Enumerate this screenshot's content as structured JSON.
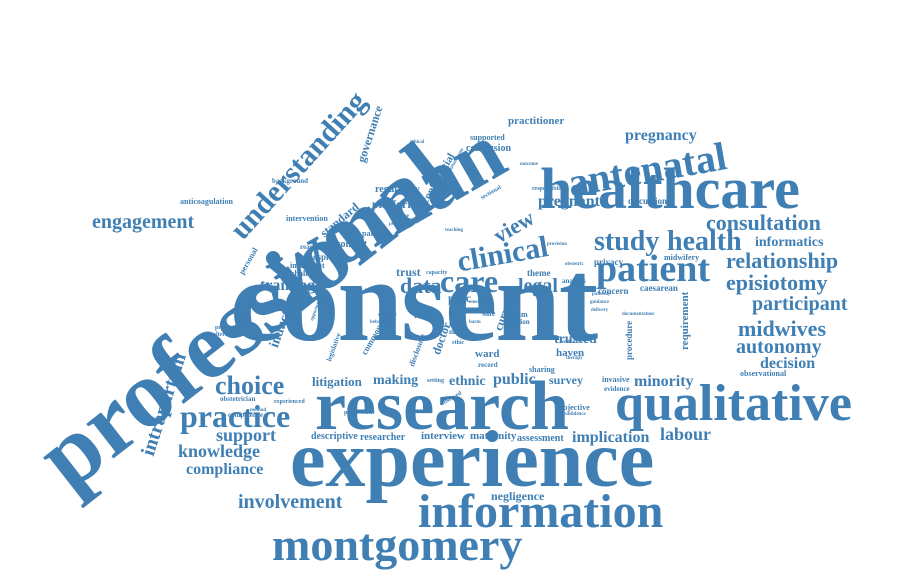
{
  "cloud": {
    "words": {
      "consent": "consent",
      "professional": "professional",
      "woman": "woman",
      "research": "research",
      "experience": "experience",
      "healthcare": "healthcare",
      "qualitative": "qualitative",
      "information": "information",
      "montgomery": "montgomery",
      "antenatal": "antenatal",
      "patient": "patient",
      "clinical": "clinical",
      "care": "care",
      "practice": "practice",
      "understanding": "understanding",
      "choice": "choice",
      "study": "study",
      "health": "health",
      "relationship": "relationship",
      "consultation": "consultation",
      "episiotomy": "episiotomy",
      "midwives": "midwives",
      "autonomy": "autonomy",
      "participant": "participant",
      "engagement": "engagement",
      "intrapartum": "intrapartum",
      "involvement": "involvement",
      "knowledge": "knowledge",
      "compliance": "compliance",
      "support": "support",
      "labour": "labour",
      "pregnancy": "pregnancy",
      "pregnant": "pregnant",
      "informatics": "informatics",
      "view": "view",
      "data": "data",
      "legal": "legal",
      "training": "training",
      "decision": "decision",
      "minority": "minority",
      "public": "public",
      "making": "making",
      "ethnic": "ethnic",
      "litigation": "litigation",
      "implication": "implication",
      "negligence": "negligence",
      "governance": "governance",
      "induction": "induction",
      "platform": "platform",
      "trusted": "trusted",
      "requirement": "requirement",
      "practitioner": "practitioner",
      "conclusion": "conclusion",
      "survey": "survey",
      "maternity": "maternity",
      "assessment": "assessment",
      "interview": "interview",
      "researcher": "researcher",
      "descriptive": "descriptive",
      "standard": "standard",
      "regulatory": "regulatory",
      "confidential": "confidential",
      "context": "context",
      "trust": "trust",
      "proc": "proc",
      "current": "current",
      "doctor": "doctor",
      "caesarean": "caesarean",
      "concern": "concern",
      "privacy": "privacy",
      "discussion": "discussion",
      "midwifery": "midwifery",
      "theme": "theme",
      "procedure": "procedure",
      "observational": "observational",
      "invasive": "invasive",
      "evidence": "evidence",
      "objective": "objective",
      "sharing": "sharing",
      "ward": "ward",
      "haven": "haven",
      "risk": "risk",
      "hospital": "hospital",
      "important": "important",
      "challenge": "challenge",
      "reasonable": "reasonable",
      "partum": "partum",
      "intervention": "intervention",
      "anticoagulation": "anticoagulation",
      "background": "background",
      "personal": "personal",
      "prevention": "prevention",
      "alternative": "alternative",
      "obstetrician": "obstetrician",
      "competence": "competence",
      "experienced": "experienced",
      "problematic": "problematic",
      "observed": "observed",
      "supported": "supported",
      "focus": "focus",
      "mental": "mental",
      "responsibility": "responsibility",
      "legislative": "legislative",
      "common": "common",
      "disclosure": "disclosure",
      "specific": "specific",
      "safe": "safe",
      "claim": "claim",
      "section": "section",
      "analysis": "analysis",
      "record": "record",
      "setting": "setting",
      "capacity": "capacity",
      "sectional": "sectional",
      "ethic": "ethic",
      "opportunities": "opportunities",
      "emerge": "emerge",
      "autonomous": "autonomous",
      "confidence": "confidence",
      "provision": "provision",
      "feedback": "feedback",
      "therapy": "therapy",
      "narrative": "narrative",
      "principle": "principle",
      "guidance": "guidance",
      "documentation": "documentation",
      "teaching": "teaching",
      "psychiatry": "psychiatry",
      "delivery": "delivery",
      "ethical": "ethical",
      "method": "method",
      "pathway": "pathway",
      "outcome": "outcome",
      "behaviour": "behaviour",
      "obstetric": "obstetric",
      "harm": "harm"
    }
  }
}
